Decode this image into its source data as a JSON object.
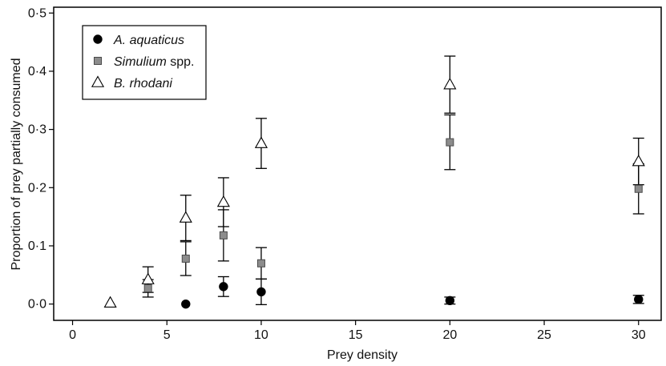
{
  "chart_data": {
    "type": "scatter",
    "xlabel": "Prey density",
    "ylabel": "Proportion of prey partially consumed",
    "xlim": [
      -1,
      31.2
    ],
    "ylim": [
      -0.028,
      0.51
    ],
    "xticks": [
      0,
      5,
      10,
      15,
      20,
      25,
      30
    ],
    "xtick_labels": [
      "0",
      "5",
      "10",
      "15",
      "20",
      "25",
      "30"
    ],
    "yticks": [
      0,
      0.1,
      0.2,
      0.3,
      0.4,
      0.5
    ],
    "ytick_labels": [
      "0·0",
      "0·1",
      "0·2",
      "0·3",
      "0·4",
      "0·5"
    ],
    "grid": false,
    "legend_position": "top-left",
    "series": [
      {
        "name": "A. aquaticus",
        "legend_italic": "A. aquaticus",
        "legend_suffix": "",
        "marker": "circle",
        "fill": "#000000",
        "points": [
          {
            "x": 6,
            "y": 0.0,
            "err": 0
          },
          {
            "x": 8,
            "y": 0.03,
            "err": 0.017
          },
          {
            "x": 10,
            "y": 0.021,
            "err": 0.022
          },
          {
            "x": 20,
            "y": 0.006,
            "err": 0.006
          },
          {
            "x": 30,
            "y": 0.008,
            "err": 0.007
          }
        ]
      },
      {
        "name": "Simulium spp.",
        "legend_italic": "Simulium",
        "legend_suffix": " spp.",
        "marker": "square",
        "fill": "#8c8c8c",
        "points": [
          {
            "x": 4,
            "y": 0.027,
            "err": 0.015
          },
          {
            "x": 6,
            "y": 0.078,
            "err": 0.029
          },
          {
            "x": 8,
            "y": 0.118,
            "err": 0.044
          },
          {
            "x": 10,
            "y": 0.07,
            "err": 0.027
          },
          {
            "x": 20,
            "y": 0.278,
            "err": 0.047
          },
          {
            "x": 30,
            "y": 0.198,
            "err": 0.043
          }
        ]
      },
      {
        "name": "B. rhodani",
        "legend_italic": "B. rhodani",
        "legend_suffix": "",
        "marker": "triangle",
        "fill": "#ffffff",
        "points": [
          {
            "x": 2,
            "y": 0.002,
            "err": 0
          },
          {
            "x": 4,
            "y": 0.042,
            "err": 0.022
          },
          {
            "x": 6,
            "y": 0.148,
            "err": 0.039
          },
          {
            "x": 8,
            "y": 0.175,
            "err": 0.042
          },
          {
            "x": 10,
            "y": 0.276,
            "err": 0.043
          },
          {
            "x": 20,
            "y": 0.377,
            "err": 0.049
          },
          {
            "x": 30,
            "y": 0.245,
            "err": 0.04
          }
        ]
      }
    ]
  }
}
